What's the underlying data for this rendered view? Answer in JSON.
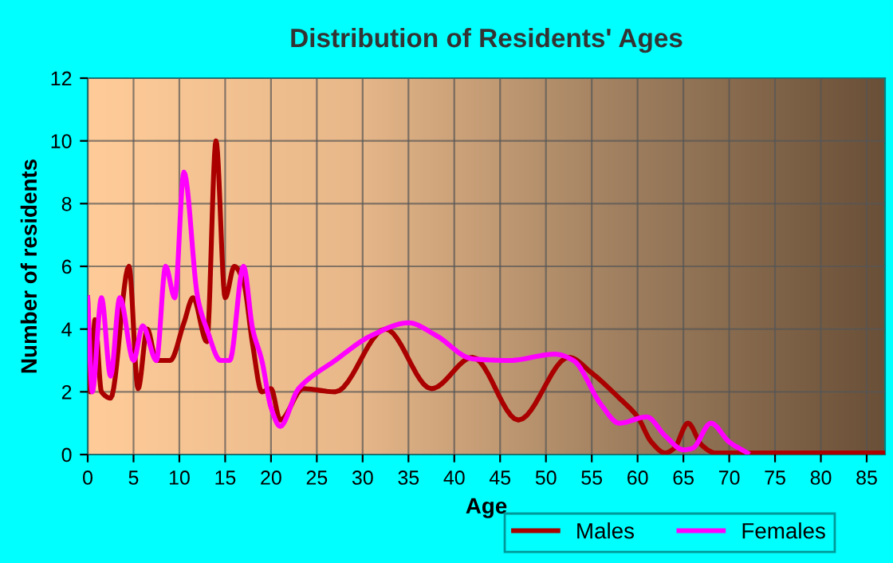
{
  "chart_data": {
    "type": "line",
    "title": "Distribution of Residents' Ages",
    "xlabel": "Age",
    "ylabel": "Number of residents",
    "xlim": [
      0,
      87
    ],
    "xticks": [
      0,
      5,
      10,
      15,
      20,
      25,
      30,
      35,
      40,
      45,
      50,
      55,
      60,
      65,
      70,
      75,
      80,
      85
    ],
    "ylim": [
      0,
      12
    ],
    "yticks": [
      0,
      2,
      4,
      6,
      8,
      10,
      12
    ],
    "grid": true,
    "legend": "bottom",
    "marker": "none",
    "line_style": "solid",
    "series": [
      {
        "name": "Males",
        "color": "#aa0000",
        "x": [
          0,
          0.3,
          0.8,
          1.5,
          2.5,
          4.5,
          5.5,
          6.5,
          7.5,
          9,
          10.5,
          11.5,
          13,
          14,
          15,
          16,
          17,
          18,
          19,
          20,
          21,
          23.5,
          27,
          32.5,
          37.5,
          42,
          47,
          52.5,
          55,
          58,
          60,
          61.5,
          63,
          64,
          65.5,
          67,
          68.5,
          70,
          87
        ],
        "values": [
          5,
          2,
          4.3,
          2,
          1.8,
          6,
          2.1,
          4,
          3,
          3,
          4.2,
          5,
          3.6,
          10,
          5,
          6,
          5.5,
          3.5,
          2,
          2.1,
          1.1,
          2.1,
          2,
          4,
          2.1,
          3.1,
          1.1,
          3.1,
          2.6,
          1.8,
          1.2,
          0.4,
          0.05,
          0.2,
          1,
          0.3,
          0.05,
          0.05,
          0.05
        ]
      },
      {
        "name": "Females",
        "color": "#ff00ff",
        "x": [
          0,
          0.5,
          1.5,
          2.5,
          3.5,
          5,
          6,
          7.5,
          8.5,
          9.5,
          10.5,
          12,
          13,
          14.5,
          15.5,
          17,
          18,
          19,
          20,
          21,
          23,
          27,
          31,
          35,
          38,
          42,
          46,
          51,
          53,
          56,
          58,
          61,
          63,
          65,
          66,
          68,
          70,
          72
        ],
        "values": [
          5,
          2,
          5,
          2.5,
          5,
          3,
          4.1,
          3,
          6,
          5,
          9,
          5,
          4,
          3,
          3,
          6,
          4,
          3,
          1.5,
          0.9,
          2.1,
          3,
          3.8,
          4.2,
          3.8,
          3.05,
          3,
          3.2,
          3,
          1.6,
          1,
          1.2,
          0.6,
          0.15,
          0.2,
          1,
          0.4,
          0.05
        ]
      }
    ]
  }
}
